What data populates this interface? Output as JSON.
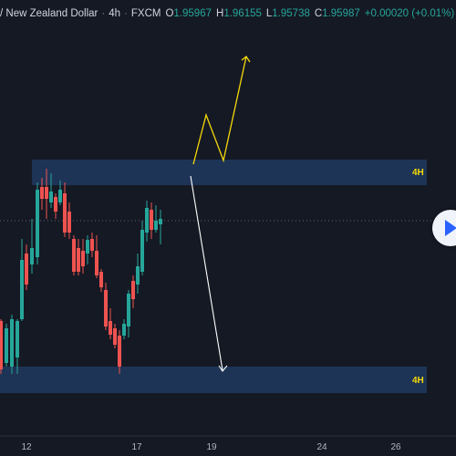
{
  "header": {
    "symbol": "/ New Zealand Dollar",
    "interval": "4h",
    "exchange": "FXCM",
    "open_label": "O",
    "open_value": "1.95967",
    "high_label": "H",
    "high_value": "1.96155",
    "low_label": "L",
    "low_value": "1.95738",
    "close_label": "C",
    "close_value": "1.95987",
    "change": "+0.00020 (+0.01%)"
  },
  "colors": {
    "background": "#151924",
    "up_candle": "#26a69a",
    "down_candle": "#ef5350",
    "zone_fill": "#1e3a5f",
    "zone_label": "#f5d90a",
    "bullish_path": "#f5d90a",
    "bearish_arrow": "#ffffff",
    "header_value": "#26a69a"
  },
  "zones": [
    {
      "name": "upper-zone",
      "label": "4H"
    },
    {
      "name": "lower-zone",
      "label": "4H"
    }
  ],
  "chart_data": {
    "type": "candlestick",
    "x_ticks": [
      "12",
      "17",
      "19",
      "24",
      "26"
    ],
    "annotations": [
      {
        "kind": "bullish-projection",
        "shape": "zigzag-up-arrow"
      },
      {
        "kind": "bearish-projection",
        "shape": "down-arrow"
      }
    ]
  }
}
